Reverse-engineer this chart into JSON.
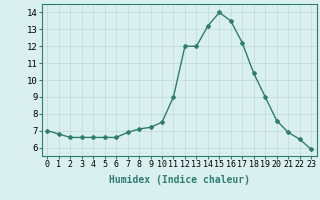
{
  "x": [
    0,
    1,
    2,
    3,
    4,
    5,
    6,
    7,
    8,
    9,
    10,
    11,
    12,
    13,
    14,
    15,
    16,
    17,
    18,
    19,
    20,
    21,
    22,
    23
  ],
  "y": [
    7.0,
    6.8,
    6.6,
    6.6,
    6.6,
    6.6,
    6.6,
    6.9,
    7.1,
    7.2,
    7.5,
    9.0,
    12.0,
    12.0,
    13.2,
    14.0,
    13.5,
    12.2,
    10.4,
    9.0,
    7.6,
    6.9,
    6.5,
    5.9
  ],
  "line_color": "#2e7d6e",
  "marker": "D",
  "marker_size": 2.0,
  "bg_color": "#d9f0ef",
  "grid_color": "#c0d8d8",
  "xlabel": "Humidex (Indice chaleur)",
  "xlabel_fontsize": 7.0,
  "ylabel_fontsize": 6.5,
  "tick_fontsize": 6.0,
  "ylim": [
    5.5,
    14.5
  ],
  "yticks": [
    6,
    7,
    8,
    9,
    10,
    11,
    12,
    13,
    14
  ],
  "xlim": [
    -0.5,
    23.5
  ],
  "line_width": 1.0,
  "border_color": "#2e7d6e",
  "font_family": "monospace"
}
